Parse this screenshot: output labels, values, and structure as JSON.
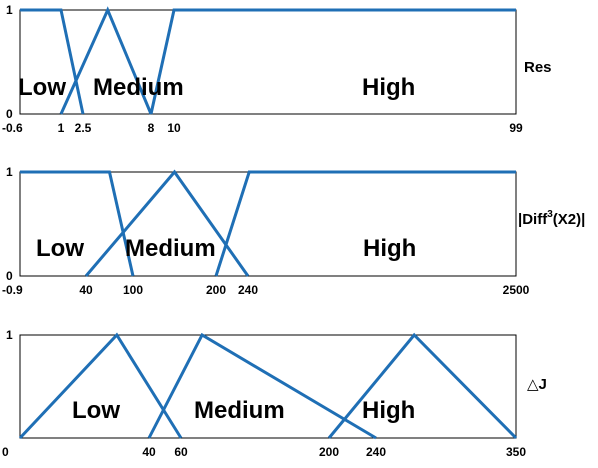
{
  "chart_data": [
    {
      "type": "line",
      "name": "res",
      "variable_label": "Res",
      "y_ticks": [
        "0",
        "1"
      ],
      "x_ticks": [
        {
          "value": -0.6,
          "label": "-0.6"
        },
        {
          "value": 1,
          "label": "1"
        },
        {
          "value": 2.5,
          "label": "2.5"
        },
        {
          "value": 8,
          "label": "8"
        },
        {
          "value": 10,
          "label": "10"
        },
        {
          "value": 99,
          "label": "99"
        }
      ],
      "series": [
        {
          "name": "Low",
          "points": [
            [
              -0.6,
              1
            ],
            [
              1,
              1
            ],
            [
              2.5,
              0
            ]
          ]
        },
        {
          "name": "Medium",
          "points": [
            [
              1,
              0
            ],
            [
              4.5,
              1
            ],
            [
              8,
              0
            ]
          ]
        },
        {
          "name": "High",
          "points": [
            [
              8,
              0
            ],
            [
              10,
              1
            ],
            [
              99,
              1
            ]
          ]
        }
      ],
      "labels": [
        {
          "text": "Low",
          "x": 0.9
        },
        {
          "text": "Medium",
          "x": 5.0
        },
        {
          "text": "High",
          "x": 55
        }
      ]
    },
    {
      "type": "line",
      "name": "diff",
      "variable_label_main": "|Diff",
      "variable_label_sup": "3",
      "variable_label_tail": "(X2)|",
      "y_ticks": [
        "0",
        "1"
      ],
      "x_ticks": [
        {
          "value": -0.9,
          "label": "-0.9"
        },
        {
          "value": 40,
          "label": "40"
        },
        {
          "value": 100,
          "label": "100"
        },
        {
          "value": 200,
          "label": "200"
        },
        {
          "value": 240,
          "label": "240"
        },
        {
          "value": 2500,
          "label": "2500"
        }
      ],
      "series": [
        {
          "name": "Low",
          "points": [
            [
              -0.9,
              1
            ],
            [
              70,
              1
            ],
            [
              100,
              0
            ]
          ]
        },
        {
          "name": "Medium",
          "points": [
            [
              40,
              0
            ],
            [
              150,
              1
            ],
            [
              240,
              0
            ]
          ]
        },
        {
          "name": "High",
          "points": [
            [
              200,
              0
            ],
            [
              250,
              1
            ],
            [
              2500,
              1
            ]
          ]
        }
      ],
      "labels": [
        {
          "text": "Low",
          "x": 25
        },
        {
          "text": "Medium",
          "x": 150
        },
        {
          "text": "High",
          "x": 1000
        }
      ]
    },
    {
      "type": "line",
      "name": "deltaj",
      "variable_label": "△J",
      "y_ticks": [
        "",
        "1"
      ],
      "x_ticks": [
        {
          "value": 0,
          "label": "0"
        },
        {
          "value": 40,
          "label": "40"
        },
        {
          "value": 60,
          "label": "60"
        },
        {
          "value": 200,
          "label": "200"
        },
        {
          "value": 240,
          "label": "240"
        },
        {
          "value": 350,
          "label": "350"
        }
      ],
      "series": [
        {
          "name": "Low",
          "points": [
            [
              0,
              0
            ],
            [
              30,
              1
            ],
            [
              60,
              0
            ]
          ]
        },
        {
          "name": "Medium",
          "points": [
            [
              40,
              0
            ],
            [
              80,
              1
            ],
            [
              240,
              0
            ]
          ]
        },
        {
          "name": "High",
          "points": [
            [
              200,
              0
            ],
            [
              270,
              1
            ],
            [
              350,
              0
            ]
          ]
        }
      ],
      "labels": [
        {
          "text": "Low",
          "x": 30
        },
        {
          "text": "Medium",
          "x": 110
        },
        {
          "text": "High",
          "x": 270
        }
      ]
    }
  ]
}
